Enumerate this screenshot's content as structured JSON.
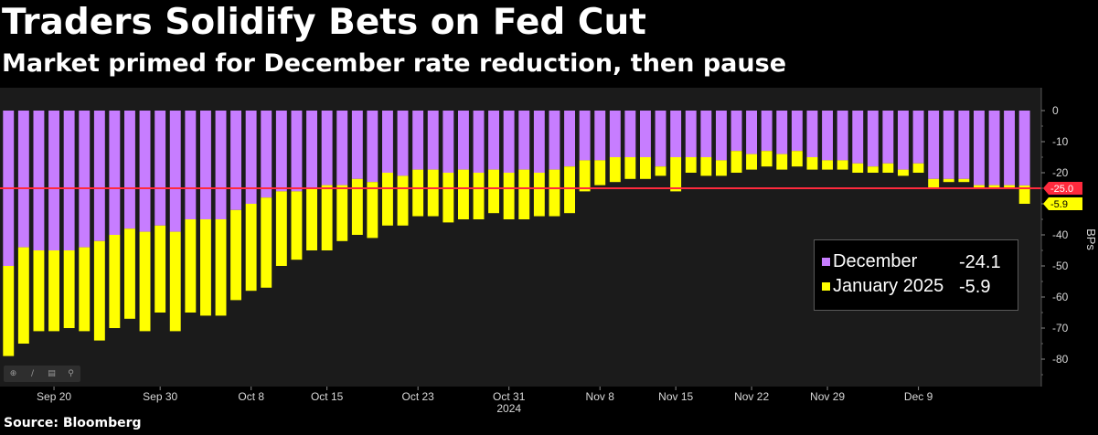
{
  "title": "Traders Solidify Bets on Fed Cut",
  "subtitle": "Market primed for December rate reduction, then pause",
  "source": "Source: Bloomberg",
  "colors": {
    "background": "#000000",
    "plot_background": "#1b1b1b",
    "december": "#c77dff",
    "january": "#ffff00",
    "reference_line": "#ff2a3d",
    "axis_text": "#d9d9d9"
  },
  "toolbar": {
    "icons": [
      "crosshair-icon",
      "draw-line-icon",
      "annotate-icon",
      "zoom-icon"
    ]
  },
  "legend": {
    "items": [
      {
        "name": "December",
        "value": "-24.1",
        "color": "#c77dff"
      },
      {
        "name": "January 2025",
        "value": "-5.9",
        "color": "#ffff00"
      }
    ]
  },
  "chart_data": {
    "type": "bar",
    "stacked": true,
    "ylabel": "BPs",
    "ylim": [
      -85,
      5
    ],
    "yticks": [
      0,
      -10,
      -20,
      -30,
      -40,
      -50,
      -60,
      -70,
      -80
    ],
    "x_tick_labels": [
      {
        "label": "Sep 20",
        "index": 3
      },
      {
        "label": "Sep 30",
        "index": 10
      },
      {
        "label": "Oct 8",
        "index": 16
      },
      {
        "label": "Oct 15",
        "index": 21
      },
      {
        "label": "Oct 23",
        "index": 27
      },
      {
        "label": "Oct 31",
        "index": 33
      },
      {
        "label": "Nov 8",
        "index": 39
      },
      {
        "label": "Nov 15",
        "index": 44
      },
      {
        "label": "Nov 22",
        "index": 49
      },
      {
        "label": "Nov 29",
        "index": 54
      },
      {
        "label": "Dec 9",
        "index": 60
      }
    ],
    "year_label": {
      "label": "2024",
      "index": 33
    },
    "reference_line": {
      "value": -25.0,
      "label": "-25.0"
    },
    "last_value_marker": {
      "value": -30.0,
      "label": "-5.9"
    },
    "series": [
      {
        "name": "December",
        "values": [
          -50,
          -44,
          -45,
          -45,
          -45,
          -44,
          -42,
          -40,
          -38,
          -39,
          -37,
          -39,
          -35,
          -35,
          -35,
          -32,
          -30,
          -28,
          -26,
          -26,
          -25,
          -24,
          -24,
          -22,
          -23,
          -20,
          -21,
          -19,
          -19,
          -20,
          -19,
          -20,
          -19,
          -20,
          -19,
          -20,
          -19,
          -18,
          -16,
          -16,
          -15,
          -15,
          -15,
          -18,
          -15,
          -15,
          -15,
          -16,
          -13,
          -14,
          -13,
          -14,
          -13,
          -15,
          -16,
          -16,
          -17,
          -18,
          -17,
          -19,
          -17,
          -22,
          -22,
          -22,
          -24,
          -24,
          -24,
          -24.1
        ]
      },
      {
        "name": "January 2025",
        "values": [
          -29,
          -31,
          -26,
          -26,
          -25,
          -27,
          -32,
          -30,
          -29,
          -32,
          -28,
          -32,
          -30,
          -31,
          -31,
          -29,
          -28,
          -29,
          -24,
          -22,
          -20,
          -21,
          -18,
          -18,
          -18,
          -17,
          -16,
          -15,
          -15,
          -16,
          -16,
          -15,
          -14,
          -15,
          -16,
          -14,
          -15,
          -15,
          -10,
          -8,
          -8,
          -7,
          -7,
          -3,
          -11,
          -5,
          -6,
          -5,
          -7,
          -5,
          -5,
          -5,
          -5,
          -4,
          -3,
          -3,
          -3,
          -2,
          -3,
          -2,
          -3,
          -3,
          -1,
          -1,
          -1,
          -1,
          -1,
          -5.9
        ]
      }
    ]
  }
}
